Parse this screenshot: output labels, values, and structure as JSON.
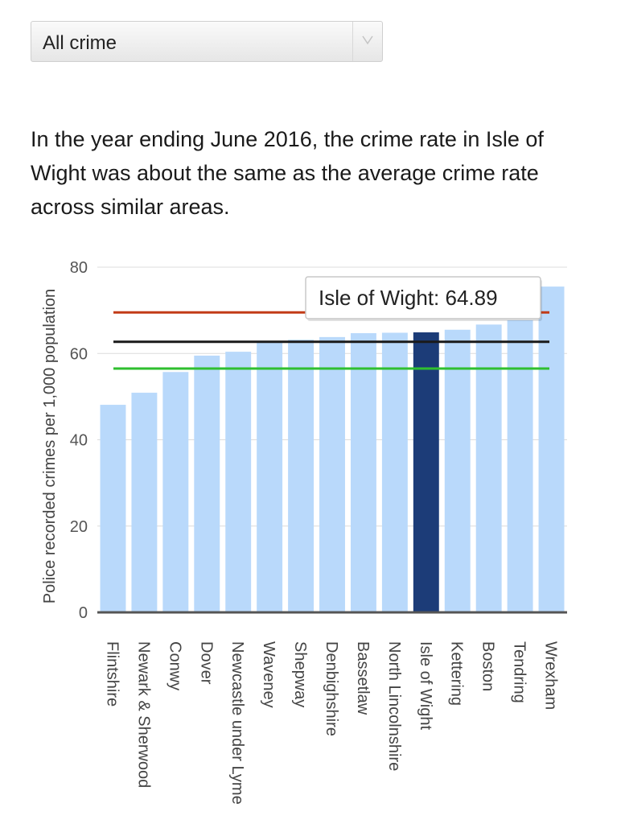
{
  "filter": {
    "selected": "All crime"
  },
  "summary": "In the year ending June 2016, the crime rate in Isle of Wight was about the same as the average crime rate across similar areas.",
  "tooltip": {
    "text": "Isle of Wight: 64.89"
  },
  "colors": {
    "bar": "#b9d9fb",
    "highlight": "#1c3c78",
    "upper_line": "#c23b17",
    "average_line": "#1a1a1a",
    "lower_line": "#2fbf2f"
  },
  "chart_data": {
    "type": "bar",
    "ylabel": "Police recorded crimes per 1,000 population",
    "ylim": [
      0,
      80
    ],
    "yticks": [
      0,
      20,
      40,
      60,
      80
    ],
    "grid": true,
    "categories": [
      "Flintshire",
      "Newark & Sherwood",
      "Conwy",
      "Dover",
      "Newcastle under Lyme",
      "Waveney",
      "Shepway",
      "Denbighshire",
      "Bassetlaw",
      "North Lincolnshire",
      "Isle of Wight",
      "Kettering",
      "Boston",
      "Tendring",
      "Wrexham"
    ],
    "values": [
      48.1,
      50.9,
      55.7,
      59.5,
      60.4,
      62.5,
      63.2,
      63.8,
      64.7,
      64.8,
      64.89,
      65.5,
      66.7,
      67.7,
      75.5
    ],
    "highlight": "Isle of Wight",
    "reference_lines": [
      {
        "value": 69.5,
        "color": "#c23b17"
      },
      {
        "value": 62.7,
        "color": "#1a1a1a"
      },
      {
        "value": 56.5,
        "color": "#2fbf2f"
      }
    ]
  }
}
